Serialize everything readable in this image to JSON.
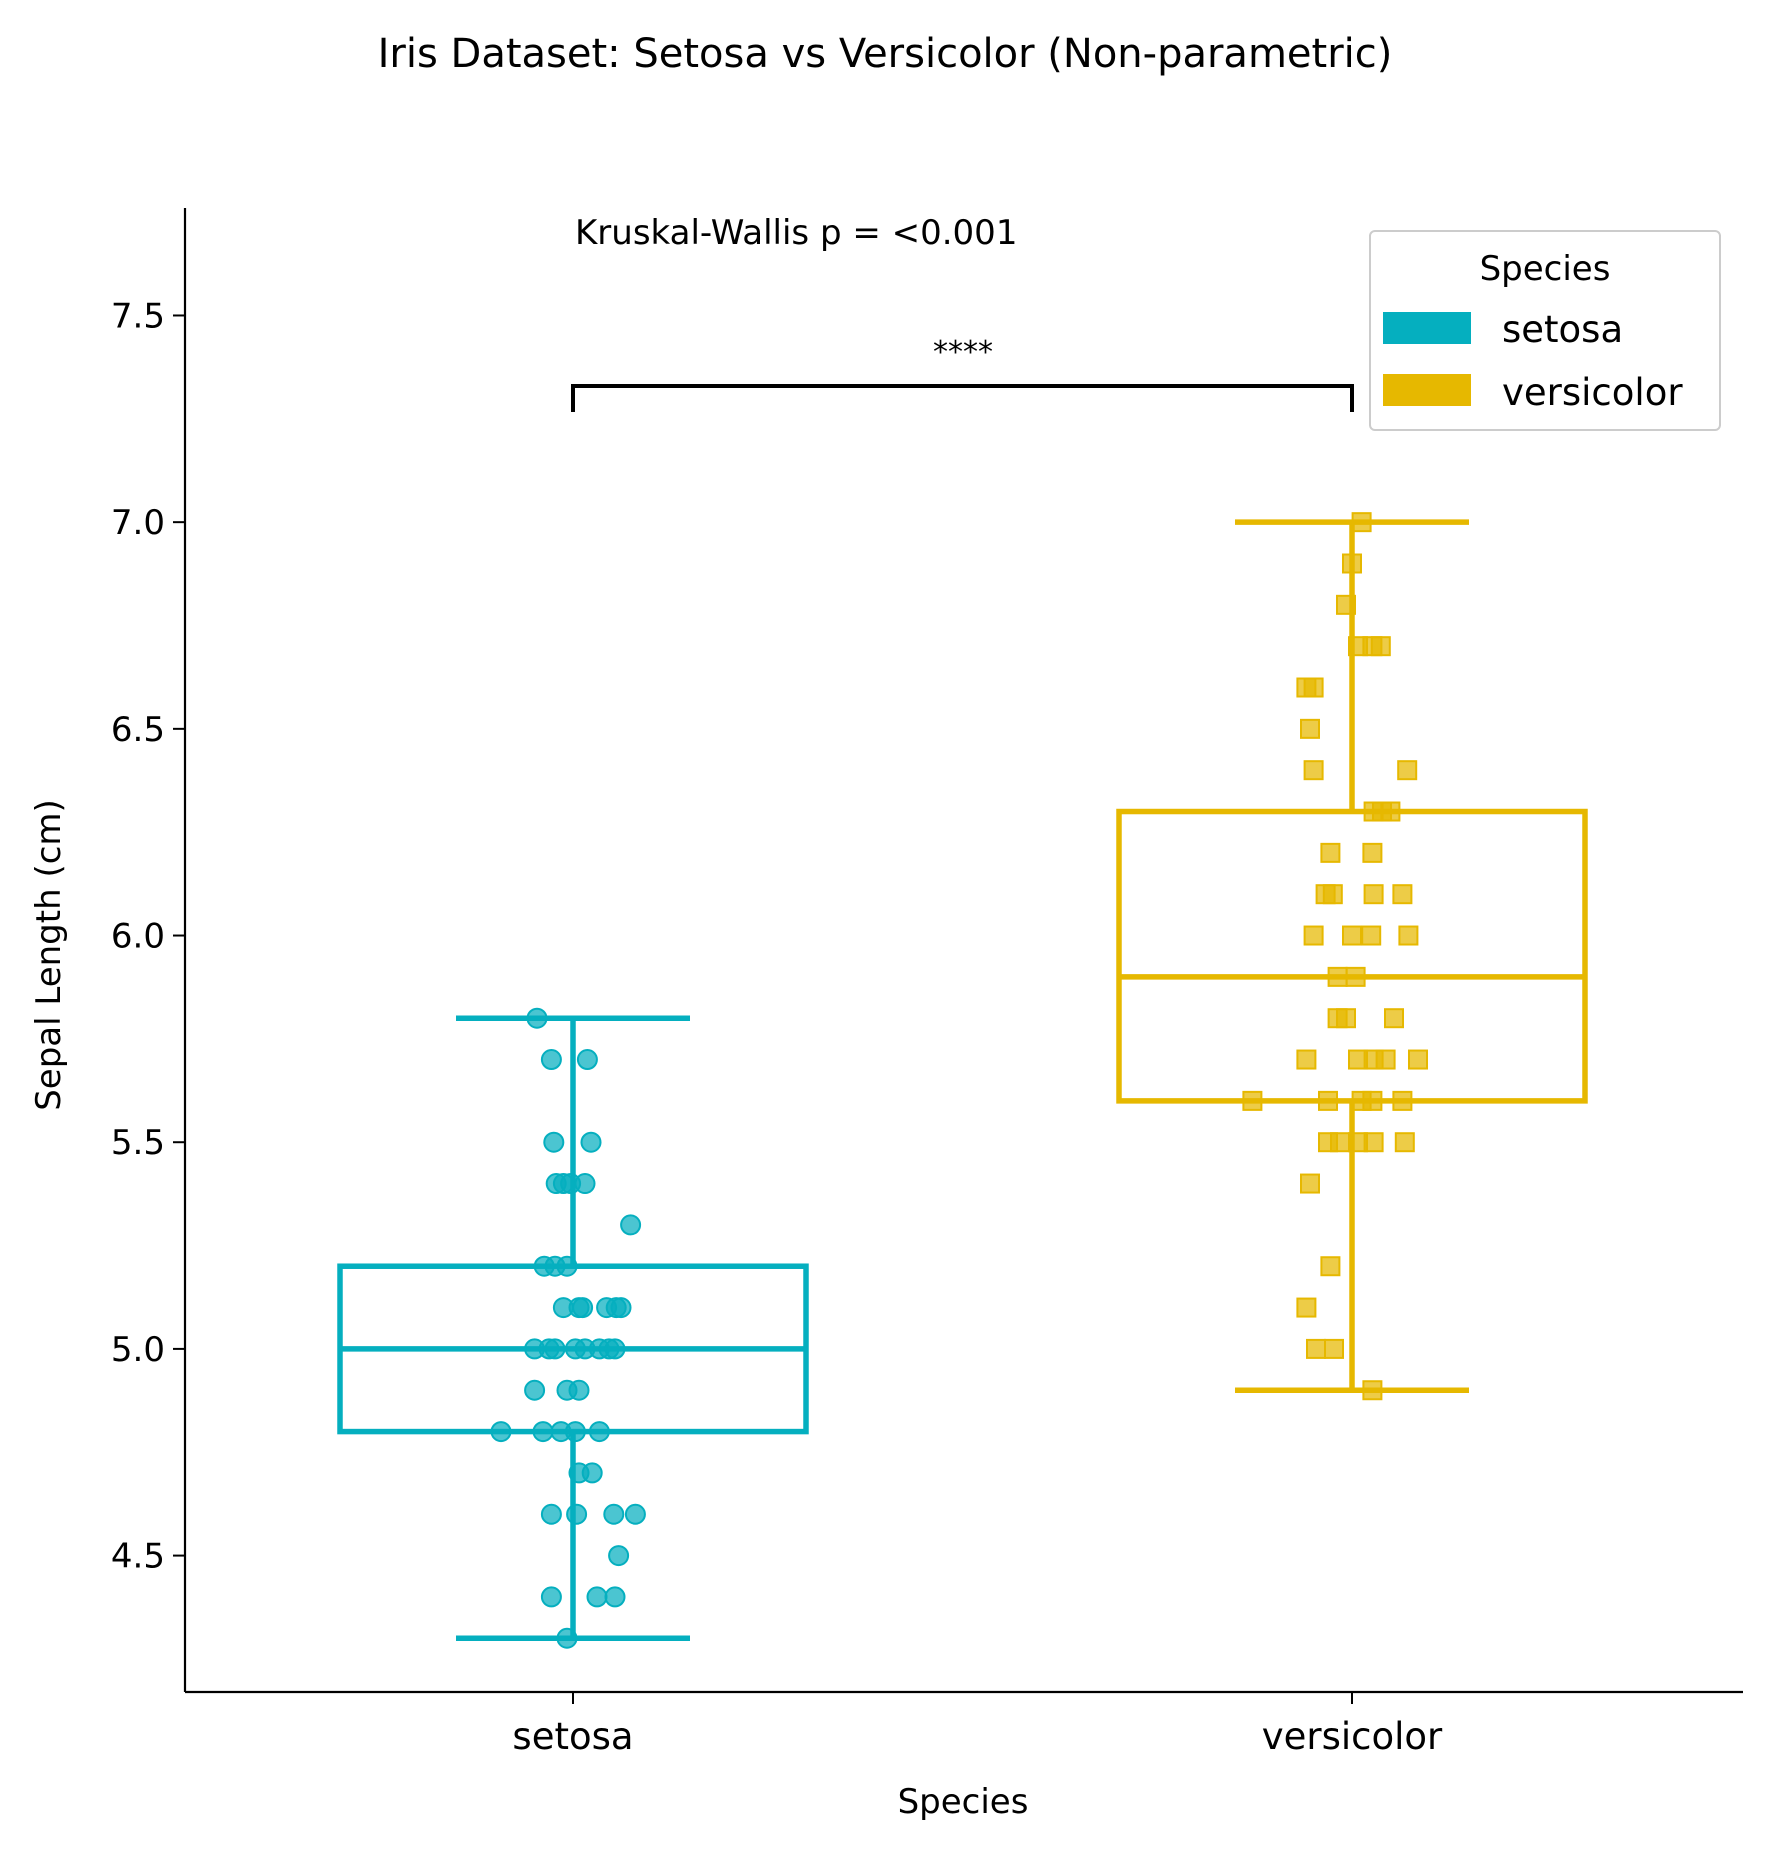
{
  "chart_data": {
    "type": "box",
    "title": "Iris Dataset: Setosa vs Versicolor (Non-parametric)",
    "xlabel": "Species",
    "ylabel": "Sepal Length (cm)",
    "ylim": [
      4.17,
      7.76
    ],
    "yticks": [
      "4.5",
      "5.0",
      "5.5",
      "6.0",
      "6.5",
      "7.0",
      "7.5"
    ],
    "categories": [
      "setosa",
      "versicolor"
    ],
    "annotation": "Kruskal-Wallis p = <0.001",
    "significance": "****",
    "legend": {
      "title": "Species",
      "placement": "top-right",
      "entries": [
        {
          "label": "setosa",
          "color": "#05AFBF"
        },
        {
          "label": "versicolor",
          "color": "#E6B800"
        }
      ]
    },
    "series": [
      {
        "name": "setosa",
        "color": "#05AFBF",
        "marker": "circle",
        "box": {
          "whisker_low": 4.3,
          "q1": 4.8,
          "median": 5.0,
          "q3": 5.2,
          "whisker_high": 5.8
        },
        "points": [
          {
            "j": -0.3,
            "y": 5.8
          },
          {
            "j": -0.18,
            "y": 5.7
          },
          {
            "j": 0.12,
            "y": 5.7
          },
          {
            "j": -0.16,
            "y": 5.5
          },
          {
            "j": 0.15,
            "y": 5.5
          },
          {
            "j": -0.14,
            "y": 5.4
          },
          {
            "j": -0.08,
            "y": 5.4
          },
          {
            "j": -0.02,
            "y": 5.4
          },
          {
            "j": 0.1,
            "y": 5.4
          },
          {
            "j": 0.48,
            "y": 5.3
          },
          {
            "j": -0.24,
            "y": 5.2
          },
          {
            "j": -0.15,
            "y": 5.2
          },
          {
            "j": -0.05,
            "y": 5.2
          },
          {
            "j": -0.08,
            "y": 5.1
          },
          {
            "j": 0.05,
            "y": 5.1
          },
          {
            "j": 0.08,
            "y": 5.1
          },
          {
            "j": 0.28,
            "y": 5.1
          },
          {
            "j": 0.36,
            "y": 5.1
          },
          {
            "j": 0.4,
            "y": 5.1
          },
          {
            "j": -0.32,
            "y": 5.0
          },
          {
            "j": -0.2,
            "y": 5.0
          },
          {
            "j": -0.15,
            "y": 5.0
          },
          {
            "j": 0.02,
            "y": 5.0
          },
          {
            "j": 0.1,
            "y": 5.0
          },
          {
            "j": 0.22,
            "y": 5.0
          },
          {
            "j": 0.3,
            "y": 5.0
          },
          {
            "j": 0.35,
            "y": 5.0
          },
          {
            "j": -0.32,
            "y": 4.9
          },
          {
            "j": -0.05,
            "y": 4.9
          },
          {
            "j": 0.05,
            "y": 4.9
          },
          {
            "j": -0.6,
            "y": 4.8
          },
          {
            "j": -0.25,
            "y": 4.8
          },
          {
            "j": -0.1,
            "y": 4.8
          },
          {
            "j": 0.02,
            "y": 4.8
          },
          {
            "j": 0.22,
            "y": 4.8
          },
          {
            "j": 0.05,
            "y": 4.7
          },
          {
            "j": 0.16,
            "y": 4.7
          },
          {
            "j": -0.18,
            "y": 4.6
          },
          {
            "j": 0.03,
            "y": 4.6
          },
          {
            "j": 0.34,
            "y": 4.6
          },
          {
            "j": 0.52,
            "y": 4.6
          },
          {
            "j": 0.38,
            "y": 4.5
          },
          {
            "j": -0.18,
            "y": 4.4
          },
          {
            "j": 0.2,
            "y": 4.4
          },
          {
            "j": 0.35,
            "y": 4.4
          },
          {
            "j": -0.05,
            "y": 4.3
          }
        ]
      },
      {
        "name": "versicolor",
        "color": "#E6B800",
        "marker": "square",
        "box": {
          "whisker_low": 4.9,
          "q1": 5.6,
          "median": 5.9,
          "q3": 6.3,
          "whisker_high": 7.0
        },
        "points": [
          {
            "j": 0.08,
            "y": 7.0
          },
          {
            "j": 0.0,
            "y": 6.9
          },
          {
            "j": -0.05,
            "y": 6.8
          },
          {
            "j": 0.05,
            "y": 6.7
          },
          {
            "j": 0.17,
            "y": 6.7
          },
          {
            "j": 0.24,
            "y": 6.7
          },
          {
            "j": -0.38,
            "y": 6.6
          },
          {
            "j": -0.32,
            "y": 6.6
          },
          {
            "j": -0.35,
            "y": 6.5
          },
          {
            "j": -0.32,
            "y": 6.4
          },
          {
            "j": 0.46,
            "y": 6.4
          },
          {
            "j": 0.18,
            "y": 6.3
          },
          {
            "j": 0.25,
            "y": 6.3
          },
          {
            "j": 0.32,
            "y": 6.3
          },
          {
            "j": -0.18,
            "y": 6.2
          },
          {
            "j": 0.17,
            "y": 6.2
          },
          {
            "j": -0.22,
            "y": 6.1
          },
          {
            "j": -0.16,
            "y": 6.1
          },
          {
            "j": 0.18,
            "y": 6.1
          },
          {
            "j": 0.42,
            "y": 6.1
          },
          {
            "j": -0.32,
            "y": 6.0
          },
          {
            "j": 0.0,
            "y": 6.0
          },
          {
            "j": 0.16,
            "y": 6.0
          },
          {
            "j": 0.47,
            "y": 6.0
          },
          {
            "j": -0.12,
            "y": 5.9
          },
          {
            "j": 0.03,
            "y": 5.9
          },
          {
            "j": -0.12,
            "y": 5.8
          },
          {
            "j": -0.05,
            "y": 5.8
          },
          {
            "j": 0.35,
            "y": 5.8
          },
          {
            "j": -0.38,
            "y": 5.7
          },
          {
            "j": 0.05,
            "y": 5.7
          },
          {
            "j": 0.18,
            "y": 5.7
          },
          {
            "j": 0.28,
            "y": 5.7
          },
          {
            "j": 0.55,
            "y": 5.7
          },
          {
            "j": -0.83,
            "y": 5.6
          },
          {
            "j": -0.2,
            "y": 5.6
          },
          {
            "j": 0.08,
            "y": 5.6
          },
          {
            "j": 0.17,
            "y": 5.6
          },
          {
            "j": 0.42,
            "y": 5.6
          },
          {
            "j": -0.2,
            "y": 5.5
          },
          {
            "j": -0.1,
            "y": 5.5
          },
          {
            "j": 0.05,
            "y": 5.5
          },
          {
            "j": 0.18,
            "y": 5.5
          },
          {
            "j": 0.44,
            "y": 5.5
          },
          {
            "j": -0.35,
            "y": 5.4
          },
          {
            "j": -0.18,
            "y": 5.2
          },
          {
            "j": -0.38,
            "y": 5.1
          },
          {
            "j": -0.3,
            "y": 5.0
          },
          {
            "j": -0.15,
            "y": 5.0
          },
          {
            "j": 0.17,
            "y": 4.9
          }
        ]
      }
    ]
  }
}
